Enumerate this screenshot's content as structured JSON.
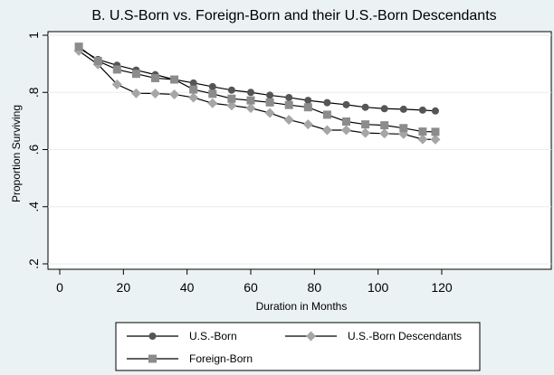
{
  "chart_data": {
    "type": "line",
    "title": "B. U.S-Born vs. Foreign-Born and their U.S.-Born Descendants",
    "xlabel": "Duration in Months",
    "ylabel": "Proportion Surviving",
    "xlim": [
      0,
      130
    ],
    "ylim": [
      0.18,
      1.05
    ],
    "xticks": [
      0,
      20,
      40,
      60,
      80,
      100,
      120
    ],
    "xtick_labels": [
      "0",
      "20",
      "40",
      "60",
      "80",
      "100",
      "120"
    ],
    "yticks": [
      0.2,
      0.4,
      0.6,
      0.8,
      1
    ],
    "ytick_labels": [
      ".2",
      ".4",
      ".6",
      ".8",
      "1"
    ],
    "grid": true,
    "legend_position": "bottom",
    "series": [
      {
        "name": "U.S.-Born",
        "marker": "circle",
        "color": "#555555",
        "x": [
          6,
          12,
          18,
          24,
          30,
          36,
          42,
          48,
          54,
          60,
          66,
          72,
          78,
          84,
          90,
          96,
          102,
          108,
          114,
          118
        ],
        "y": [
          0.955,
          0.915,
          0.895,
          0.878,
          0.862,
          0.845,
          0.833,
          0.82,
          0.808,
          0.8,
          0.79,
          0.782,
          0.772,
          0.764,
          0.757,
          0.748,
          0.743,
          0.741,
          0.738,
          0.735
        ]
      },
      {
        "name": "U.S.-Born Descendants",
        "marker": "diamond",
        "color": "#a6a6a6",
        "x": [
          6,
          12,
          18,
          24,
          30,
          36,
          42,
          48,
          54,
          60,
          66,
          72,
          78,
          84,
          90,
          96,
          102,
          108,
          114,
          118
        ],
        "y": [
          0.945,
          0.898,
          0.828,
          0.797,
          0.796,
          0.793,
          0.782,
          0.762,
          0.754,
          0.745,
          0.728,
          0.704,
          0.688,
          0.668,
          0.668,
          0.658,
          0.656,
          0.654,
          0.636,
          0.635
        ]
      },
      {
        "name": "Foreign-Born",
        "marker": "square",
        "color": "#8c8c8c",
        "x": [
          6,
          12,
          18,
          24,
          30,
          36,
          42,
          48,
          54,
          60,
          66,
          72,
          78,
          84,
          90,
          96,
          102,
          108,
          114,
          118
        ],
        "y": [
          0.96,
          0.91,
          0.88,
          0.865,
          0.85,
          0.845,
          0.81,
          0.795,
          0.778,
          0.772,
          0.765,
          0.756,
          0.748,
          0.722,
          0.698,
          0.688,
          0.685,
          0.675,
          0.663,
          0.662
        ]
      }
    ]
  },
  "colors": {
    "page_background": "#eaf2f3",
    "plot_background": "#ffffff",
    "line": "#000000",
    "grid": "#e6eeee"
  }
}
